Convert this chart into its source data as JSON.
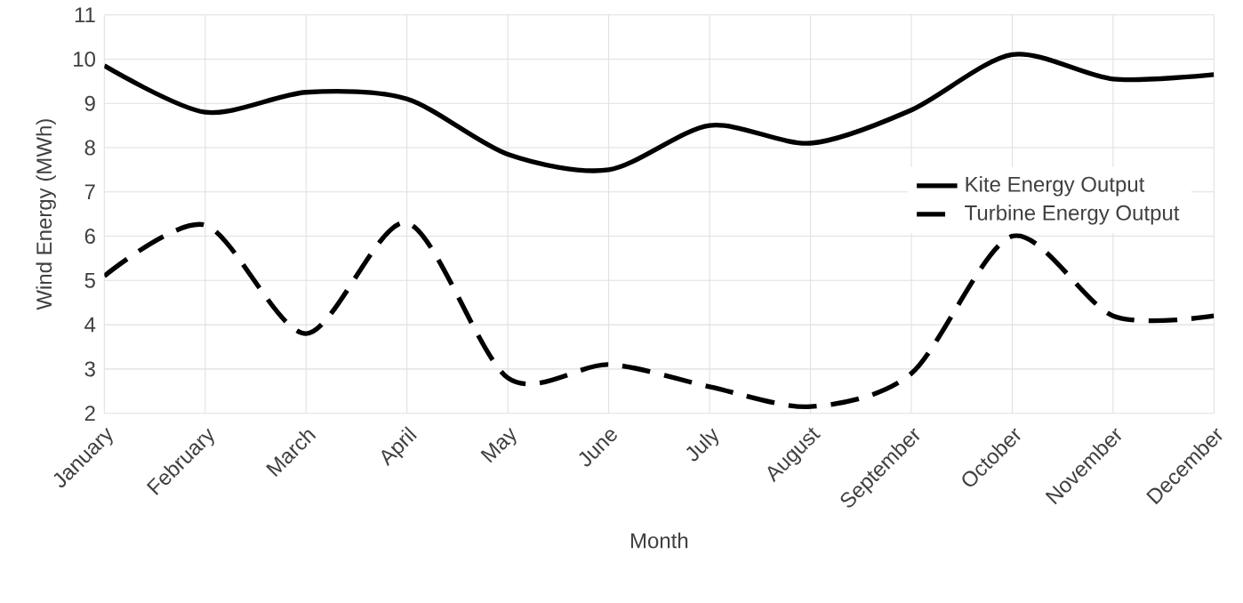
{
  "chart_data": {
    "type": "line",
    "xlabel": "Month",
    "ylabel": "Wind Energy (MWh)",
    "categories": [
      "January",
      "February",
      "March",
      "April",
      "May",
      "June",
      "July",
      "August",
      "September",
      "October",
      "November",
      "December"
    ],
    "series": [
      {
        "name": "Kite Energy Output",
        "color": "#000000",
        "line_style": "solid",
        "values": [
          9.85,
          8.8,
          9.25,
          9.1,
          7.85,
          7.5,
          8.5,
          8.1,
          8.85,
          10.1,
          9.55,
          9.65
        ]
      },
      {
        "name": "Turbine Energy Output",
        "color": "#000000",
        "line_style": "dashed",
        "values": [
          5.1,
          6.25,
          3.8,
          6.3,
          2.8,
          3.1,
          2.6,
          2.15,
          2.9,
          6.0,
          4.2,
          4.2
        ]
      }
    ],
    "ylim": [
      2,
      11
    ],
    "yticks": [
      2,
      3,
      4,
      5,
      6,
      7,
      8,
      9,
      10,
      11
    ],
    "grid": true,
    "legend": "right",
    "marker": "none"
  }
}
